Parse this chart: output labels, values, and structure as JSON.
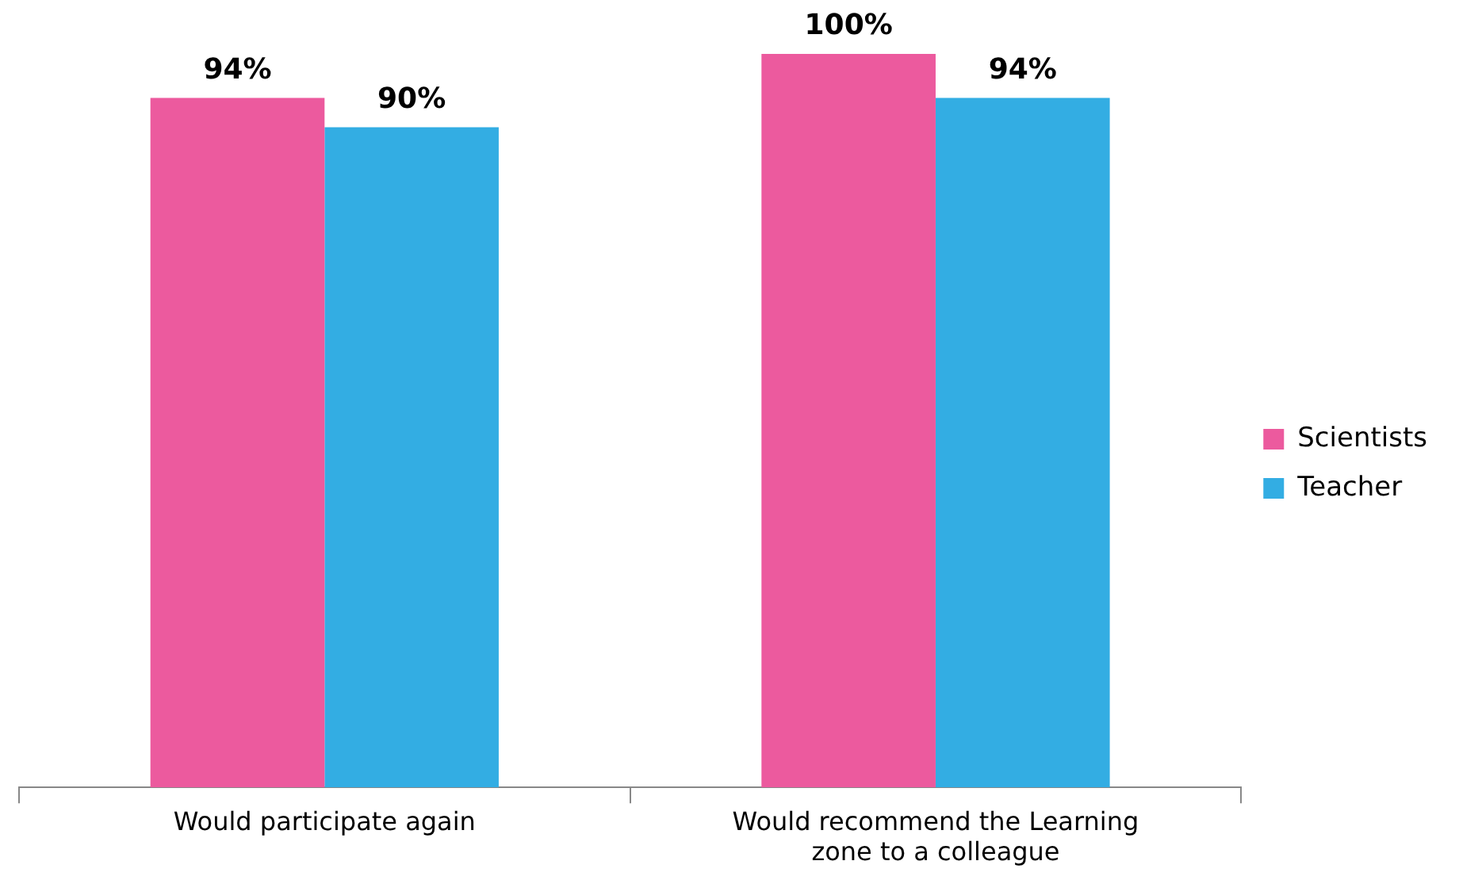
{
  "chart_data": {
    "type": "bar",
    "categories": [
      "Would participate again",
      "Would recommend the Learning zone to a colleague"
    ],
    "series": [
      {
        "name": "Scientists",
        "color": "#ec5a9e",
        "values": [
          94,
          100
        ],
        "value_labels": [
          "94%",
          "100%"
        ]
      },
      {
        "name": "Teacher",
        "color": "#33ade3",
        "values": [
          90,
          94
        ],
        "value_labels": [
          "90%",
          "94%"
        ]
      }
    ],
    "legend": "right"
  }
}
